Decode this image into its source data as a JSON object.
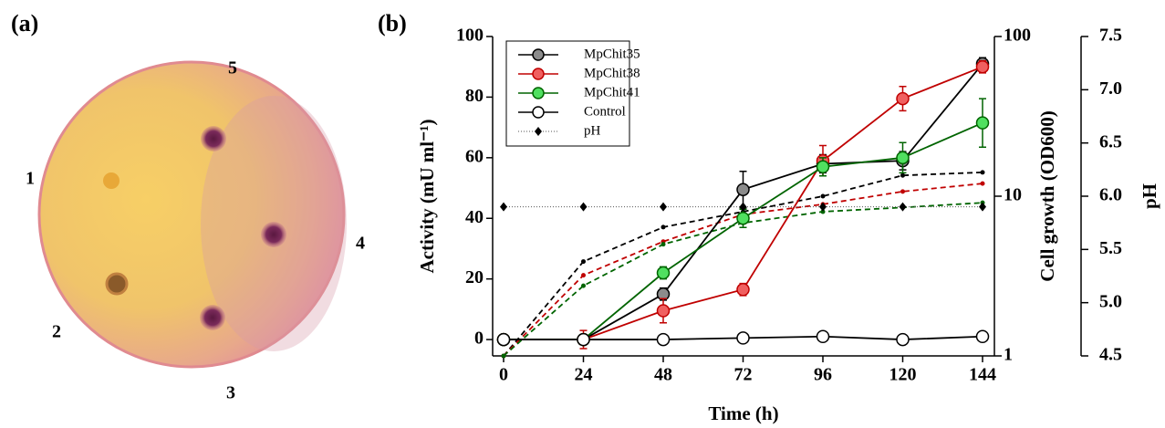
{
  "panel_a": {
    "label": "(a)",
    "spot_labels": [
      "1",
      "2",
      "3",
      "4",
      "5"
    ]
  },
  "chart_data": {
    "type": "line",
    "panel_label": "(b)",
    "x_label": "Time (h)",
    "y_label": "Activity (mU ml⁻¹)",
    "y2_label": "Cell growth (OD600)",
    "y3_label": "pH",
    "x": [
      0,
      24,
      48,
      72,
      96,
      120,
      144
    ],
    "xlim": [
      0,
      144
    ],
    "xticks": [
      0,
      24,
      48,
      72,
      96,
      120,
      144
    ],
    "ylim": [
      -5.4,
      100
    ],
    "yticks": [
      0,
      20,
      40,
      60,
      80,
      100
    ],
    "y2lim": [
      1,
      100
    ],
    "y2ticks": [
      1,
      10,
      100
    ],
    "y2_log": true,
    "y3lim": [
      4.5,
      7.5
    ],
    "y3ticks": [
      4.5,
      {
        "value": 5,
        "label": "5.0"
      },
      5.5,
      {
        "value": 6,
        "label": "6.0"
      },
      6.5,
      {
        "value": 7,
        "label": "7.0"
      },
      7.5
    ],
    "legend": "upper left",
    "series": [
      {
        "name": "MpChit35",
        "color": "#8c8c8c",
        "line": "#000000",
        "values": [
          0,
          0,
          15,
          49.5,
          58,
          59,
          91
        ],
        "errors": [
          1,
          1,
          2,
          6,
          3,
          3,
          2
        ]
      },
      {
        "name": "MpChit38",
        "color": "#f06060",
        "line": "#c00000",
        "values": [
          0,
          0,
          9.5,
          16.5,
          59,
          79.5,
          90
        ],
        "errors": [
          1,
          3,
          4,
          2,
          5,
          4,
          2
        ]
      },
      {
        "name": "MpChit41",
        "color": "#50e060",
        "line": "#006400",
        "values": [
          0,
          0,
          22,
          40,
          57,
          60,
          71.5
        ],
        "errors": [
          1,
          1,
          2,
          3,
          3,
          5,
          8
        ]
      },
      {
        "name": "Control",
        "color": "#ffffff",
        "line": "#000000",
        "values": [
          0,
          0,
          0,
          0.5,
          1,
          0,
          1
        ]
      },
      {
        "name": "pH",
        "color": "#000000",
        "axis": "y3",
        "values": [
          5.9,
          5.9,
          5.9,
          5.9,
          5.9,
          5.9,
          5.9
        ]
      }
    ],
    "growth_series": [
      {
        "color": "#000000",
        "axis": "y2",
        "values": [
          1,
          3.9,
          6.4,
          8.0,
          10.0,
          13.5,
          14.1
        ]
      },
      {
        "color": "#c00000",
        "axis": "y2",
        "values": [
          1,
          3.2,
          5.2,
          7.7,
          8.9,
          10.7,
          12.0
        ]
      },
      {
        "color": "#006400",
        "axis": "y2",
        "values": [
          1,
          2.75,
          5.0,
          6.8,
          8.0,
          8.5,
          9.1
        ]
      }
    ]
  }
}
